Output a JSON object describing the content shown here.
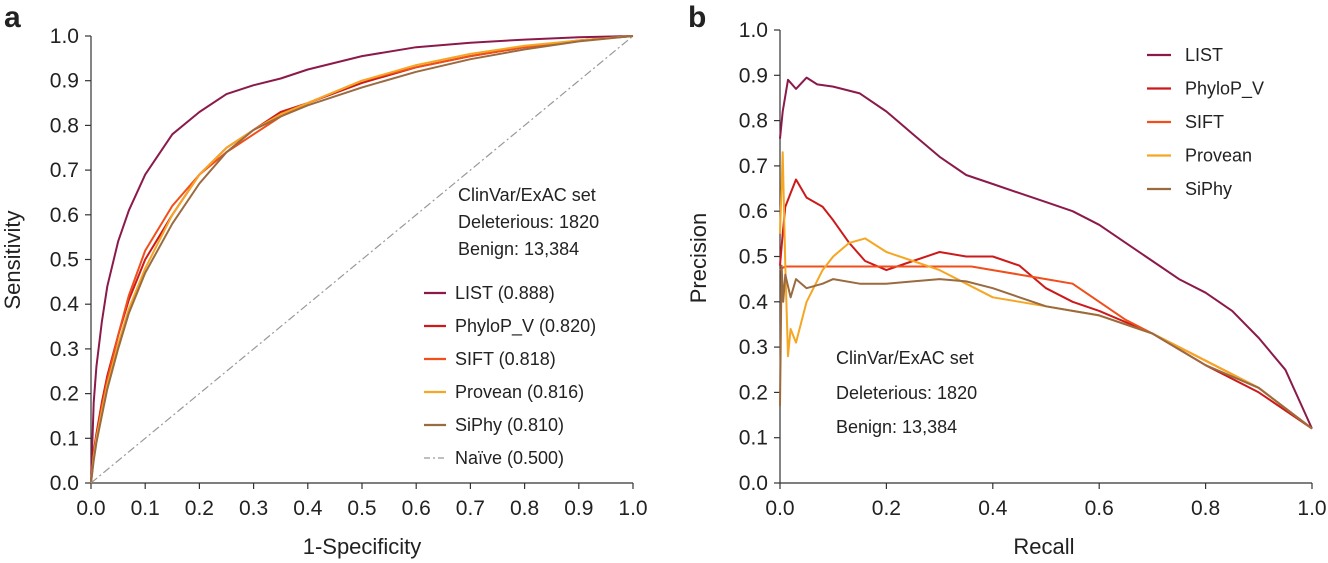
{
  "chart_data": [
    {
      "type": "line",
      "panel_label": "a",
      "title": "",
      "xlabel": "1-Specificity",
      "ylabel": "Sensitivity",
      "xlim": [
        0,
        1
      ],
      "ylim": [
        0,
        1
      ],
      "xticks": [
        "0.0",
        "0.1",
        "0.2",
        "0.3",
        "0.4",
        "0.5",
        "0.6",
        "0.7",
        "0.8",
        "0.9",
        "1.0"
      ],
      "yticks": [
        "0.0",
        "0.1",
        "0.2",
        "0.3",
        "0.4",
        "0.5",
        "0.6",
        "0.7",
        "0.8",
        "0.9",
        "1.0"
      ],
      "grid": false,
      "legend_position": "lower-right",
      "annotation": [
        "ClinVar/ExAC set",
        "Deleterious: 1820",
        "Benign: 13,384"
      ],
      "series": [
        {
          "name": "LIST (0.888)",
          "color": "#8b1a4a",
          "dash": "solid",
          "x": [
            0,
            0.005,
            0.01,
            0.02,
            0.03,
            0.05,
            0.07,
            0.1,
            0.15,
            0.2,
            0.25,
            0.3,
            0.35,
            0.4,
            0.5,
            0.6,
            0.7,
            0.8,
            0.9,
            1.0
          ],
          "y": [
            0,
            0.18,
            0.26,
            0.36,
            0.44,
            0.54,
            0.61,
            0.69,
            0.78,
            0.83,
            0.87,
            0.89,
            0.905,
            0.925,
            0.955,
            0.975,
            0.985,
            0.992,
            0.997,
            1.0
          ]
        },
        {
          "name": "PhyloP_V (0.820)",
          "color": "#cc1a1a",
          "dash": "solid",
          "x": [
            0,
            0.005,
            0.01,
            0.02,
            0.03,
            0.05,
            0.07,
            0.1,
            0.15,
            0.2,
            0.25,
            0.3,
            0.35,
            0.4,
            0.5,
            0.6,
            0.7,
            0.8,
            0.9,
            1.0
          ],
          "y": [
            0,
            0.07,
            0.11,
            0.18,
            0.24,
            0.33,
            0.41,
            0.5,
            0.6,
            0.69,
            0.75,
            0.79,
            0.83,
            0.85,
            0.895,
            0.93,
            0.955,
            0.975,
            0.99,
            1.0
          ]
        },
        {
          "name": "SIFT (0.818)",
          "color": "#f04e1a",
          "dash": "solid",
          "x": [
            0,
            0.005,
            0.01,
            0.02,
            0.03,
            0.05,
            0.07,
            0.1,
            0.15,
            0.2,
            0.25,
            0.3,
            0.35,
            0.4,
            0.5,
            0.6,
            0.7,
            0.8,
            0.9,
            1.0
          ],
          "y": [
            0,
            0.06,
            0.1,
            0.17,
            0.23,
            0.33,
            0.42,
            0.52,
            0.62,
            0.69,
            0.74,
            0.78,
            0.82,
            0.85,
            0.9,
            0.93,
            0.955,
            0.975,
            0.99,
            1.0
          ]
        },
        {
          "name": "Provean (0.816)",
          "color": "#f5a623",
          "dash": "solid",
          "x": [
            0,
            0.005,
            0.01,
            0.02,
            0.03,
            0.05,
            0.07,
            0.1,
            0.15,
            0.2,
            0.25,
            0.3,
            0.35,
            0.4,
            0.5,
            0.6,
            0.7,
            0.8,
            0.9,
            1.0
          ],
          "y": [
            0,
            0.06,
            0.1,
            0.16,
            0.22,
            0.31,
            0.39,
            0.48,
            0.6,
            0.69,
            0.75,
            0.79,
            0.825,
            0.85,
            0.9,
            0.935,
            0.96,
            0.978,
            0.99,
            1.0
          ]
        },
        {
          "name": "SiPhy (0.810)",
          "color": "#9a6a40",
          "dash": "solid",
          "x": [
            0,
            0.005,
            0.01,
            0.02,
            0.03,
            0.05,
            0.07,
            0.1,
            0.15,
            0.2,
            0.25,
            0.3,
            0.35,
            0.4,
            0.5,
            0.6,
            0.7,
            0.8,
            0.9,
            1.0
          ],
          "y": [
            0,
            0.05,
            0.09,
            0.15,
            0.21,
            0.3,
            0.38,
            0.47,
            0.58,
            0.67,
            0.74,
            0.79,
            0.82,
            0.845,
            0.885,
            0.92,
            0.948,
            0.97,
            0.988,
            1.0
          ]
        },
        {
          "name": "Naïve (0.500)",
          "color": "#999999",
          "dash": "dashdot",
          "x": [
            0,
            1
          ],
          "y": [
            0,
            1
          ]
        }
      ]
    },
    {
      "type": "line",
      "panel_label": "b",
      "title": "",
      "xlabel": "Recall",
      "ylabel": "Precision",
      "xlim": [
        0,
        1
      ],
      "ylim": [
        0,
        1
      ],
      "xticks": [
        "0.0",
        "0.2",
        "0.4",
        "0.6",
        "0.8",
        "1.0"
      ],
      "yticks": [
        "0.0",
        "0.1",
        "0.2",
        "0.3",
        "0.4",
        "0.5",
        "0.6",
        "0.7",
        "0.8",
        "0.9",
        "1.0"
      ],
      "grid": false,
      "legend_position": "top-right",
      "annotation": [
        "ClinVar/ExAC set",
        "Deleterious: 1820",
        "Benign: 13,384"
      ],
      "series": [
        {
          "name": "LIST",
          "color": "#8b1a4a",
          "dash": "solid",
          "x": [
            0,
            0.005,
            0.015,
            0.03,
            0.05,
            0.07,
            0.1,
            0.15,
            0.2,
            0.25,
            0.3,
            0.35,
            0.4,
            0.45,
            0.5,
            0.55,
            0.6,
            0.65,
            0.7,
            0.75,
            0.8,
            0.85,
            0.9,
            0.95,
            1.0
          ],
          "y": [
            0.76,
            0.82,
            0.89,
            0.87,
            0.895,
            0.88,
            0.875,
            0.86,
            0.82,
            0.77,
            0.72,
            0.68,
            0.66,
            0.64,
            0.62,
            0.6,
            0.57,
            0.53,
            0.49,
            0.45,
            0.42,
            0.38,
            0.32,
            0.25,
            0.12
          ]
        },
        {
          "name": "PhyloP_V",
          "color": "#cc1a1a",
          "dash": "solid",
          "x": [
            0,
            0.005,
            0.01,
            0.02,
            0.03,
            0.05,
            0.08,
            0.1,
            0.13,
            0.16,
            0.2,
            0.25,
            0.3,
            0.35,
            0.4,
            0.45,
            0.5,
            0.55,
            0.6,
            0.7,
            0.8,
            0.9,
            1.0
          ],
          "y": [
            0.48,
            0.55,
            0.61,
            0.64,
            0.67,
            0.63,
            0.61,
            0.58,
            0.53,
            0.49,
            0.47,
            0.49,
            0.51,
            0.5,
            0.5,
            0.48,
            0.43,
            0.4,
            0.38,
            0.33,
            0.26,
            0.2,
            0.12
          ]
        },
        {
          "name": "SIFT",
          "color": "#f04e1a",
          "dash": "solid",
          "x": [
            0,
            0.005,
            0.01,
            0.1,
            0.2,
            0.3,
            0.36,
            0.4,
            0.45,
            0.5,
            0.55,
            0.6,
            0.65,
            0.7,
            0.8,
            0.9,
            1.0
          ],
          "y": [
            0.47,
            0.475,
            0.478,
            0.478,
            0.478,
            0.478,
            0.478,
            0.47,
            0.46,
            0.45,
            0.44,
            0.4,
            0.36,
            0.33,
            0.27,
            0.21,
            0.12
          ]
        },
        {
          "name": "Provean",
          "color": "#f5a623",
          "dash": "solid",
          "x": [
            0,
            0.005,
            0.01,
            0.015,
            0.02,
            0.03,
            0.05,
            0.08,
            0.1,
            0.13,
            0.16,
            0.2,
            0.25,
            0.3,
            0.35,
            0.4,
            0.45,
            0.5,
            0.55,
            0.6,
            0.7,
            0.8,
            0.9,
            1.0
          ],
          "y": [
            0.55,
            0.73,
            0.48,
            0.28,
            0.34,
            0.31,
            0.4,
            0.47,
            0.5,
            0.53,
            0.54,
            0.51,
            0.49,
            0.47,
            0.44,
            0.41,
            0.4,
            0.39,
            0.38,
            0.37,
            0.33,
            0.27,
            0.21,
            0.12
          ]
        },
        {
          "name": "SiPhy",
          "color": "#9a6a40",
          "dash": "solid",
          "x": [
            0,
            0.003,
            0.006,
            0.01,
            0.02,
            0.03,
            0.05,
            0.08,
            0.1,
            0.15,
            0.2,
            0.25,
            0.3,
            0.35,
            0.4,
            0.45,
            0.5,
            0.55,
            0.6,
            0.7,
            0.8,
            0.9,
            1.0
          ],
          "y": [
            0.17,
            0.48,
            0.4,
            0.46,
            0.41,
            0.45,
            0.43,
            0.44,
            0.45,
            0.44,
            0.44,
            0.445,
            0.45,
            0.445,
            0.43,
            0.41,
            0.39,
            0.38,
            0.37,
            0.33,
            0.26,
            0.21,
            0.12
          ]
        }
      ]
    }
  ]
}
